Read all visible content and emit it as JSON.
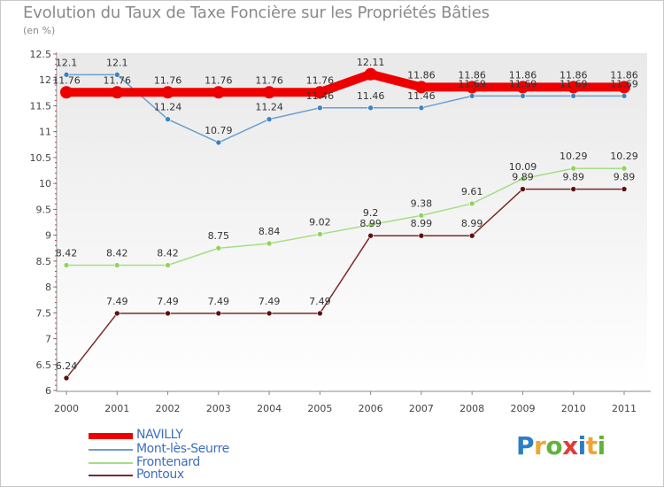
{
  "header": {
    "title": "Evolution du Taux de Taxe Foncière sur les Propriétés Bâties",
    "subtitle": "(en %)"
  },
  "chart_data": {
    "type": "line",
    "title": "Evolution du Taux de Taxe Foncière sur les Propriétés Bâties",
    "ylabel": "(en %)",
    "xlabel": "",
    "grid": false,
    "ylim": [
      6,
      12.5
    ],
    "yticks": [
      "6",
      "6.5",
      "7",
      "7.5",
      "8",
      "8.5",
      "9",
      "9.5",
      "10",
      "10.5",
      "11",
      "11.5",
      "12",
      "12.5"
    ],
    "categories": [
      "2000",
      "2001",
      "2002",
      "2003",
      "2004",
      "2005",
      "2006",
      "2007",
      "2008",
      "2009",
      "2010",
      "2011"
    ],
    "series": [
      {
        "name": "NAVILLY",
        "color": "#ee0000",
        "values": [
          11.76,
          11.76,
          11.76,
          11.76,
          11.76,
          11.76,
          12.11,
          11.86,
          11.86,
          11.86,
          11.86,
          11.86
        ],
        "labels": [
          "11.76",
          "11.76",
          "11.76",
          "11.76",
          "11.76",
          "11.76",
          "12.11",
          "11.86",
          "11.86",
          "11.86",
          "11.86",
          "11.86"
        ]
      },
      {
        "name": "Mont-lès-Seurre",
        "color": "#6a9fcd",
        "values": [
          12.1,
          12.1,
          11.24,
          10.79,
          11.24,
          11.46,
          11.46,
          11.46,
          11.69,
          11.69,
          11.69,
          11.69
        ],
        "labels": [
          "12.1",
          "12.1",
          "11.24",
          "10.79",
          "11.24",
          "11.46",
          "11.46",
          "11.46",
          "11.69",
          "11.69",
          "11.69",
          "11.69"
        ]
      },
      {
        "name": "Frontenard",
        "color": "#a6dd84",
        "values": [
          8.42,
          8.42,
          8.42,
          8.75,
          8.84,
          9.02,
          9.2,
          9.38,
          9.61,
          10.09,
          10.29,
          10.29
        ],
        "labels": [
          "8.42",
          "8.42",
          "8.42",
          "8.75",
          "8.84",
          "9.02",
          "9.2",
          "9.38",
          "9.61",
          "10.09",
          "10.29",
          "10.29"
        ]
      },
      {
        "name": "Pontoux",
        "color": "#7a2a2a",
        "values": [
          6.24,
          7.49,
          7.49,
          7.49,
          7.49,
          7.49,
          8.99,
          8.99,
          8.99,
          9.89,
          9.89,
          9.89
        ],
        "labels": [
          "6.24",
          "7.49",
          "7.49",
          "7.49",
          "7.49",
          "7.49",
          "8.99",
          "8.99",
          "8.99",
          "9.89",
          "9.89",
          "9.89"
        ]
      }
    ],
    "legend": "bottom-left"
  },
  "logo": {
    "letters": [
      "P",
      "r",
      "o",
      "x",
      "i",
      "t",
      "i"
    ],
    "colors": [
      "#2a7ec8",
      "#f2a533",
      "#61b33a",
      "#e23b3b",
      "#2a7ec8",
      "#f2a533",
      "#61b33a"
    ]
  }
}
